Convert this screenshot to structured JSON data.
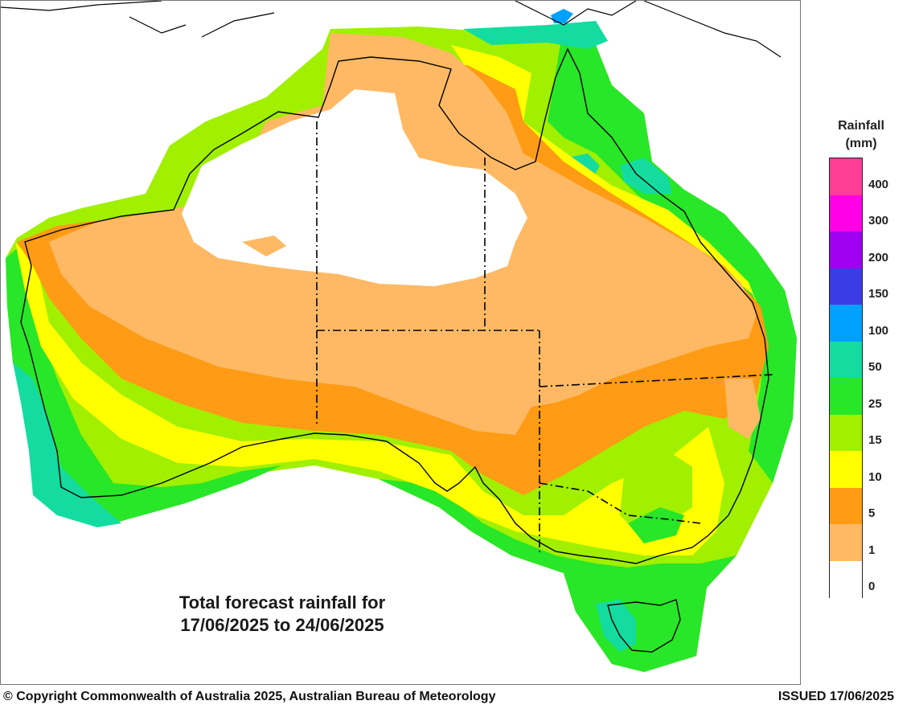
{
  "map": {
    "title_line1": "Total forecast rainfall for",
    "title_line2": "17/06/2025 to 24/06/2025"
  },
  "legend": {
    "title_line1": "Rainfall",
    "title_line2": "(mm)",
    "bins": [
      {
        "label": "400",
        "color": "#ff3c96"
      },
      {
        "label": "300",
        "color": "#ff00e6"
      },
      {
        "label": "200",
        "color": "#a000f0"
      },
      {
        "label": "150",
        "color": "#3c3ce6"
      },
      {
        "label": "100",
        "color": "#00a0ff"
      },
      {
        "label": "50",
        "color": "#14dca0"
      },
      {
        "label": "25",
        "color": "#28e628"
      },
      {
        "label": "15",
        "color": "#a0f000"
      },
      {
        "label": "10",
        "color": "#ffff00"
      },
      {
        "label": "5",
        "color": "#ff9b14"
      },
      {
        "label": "1",
        "color": "#ffb964"
      },
      {
        "label": "0",
        "color": "#ffffff"
      }
    ]
  },
  "footer": {
    "copyright": "© Copyright Commonwealth of Australia 2025, Australian Bureau of Meteorology",
    "issued": "ISSUED 17/06/2025"
  }
}
